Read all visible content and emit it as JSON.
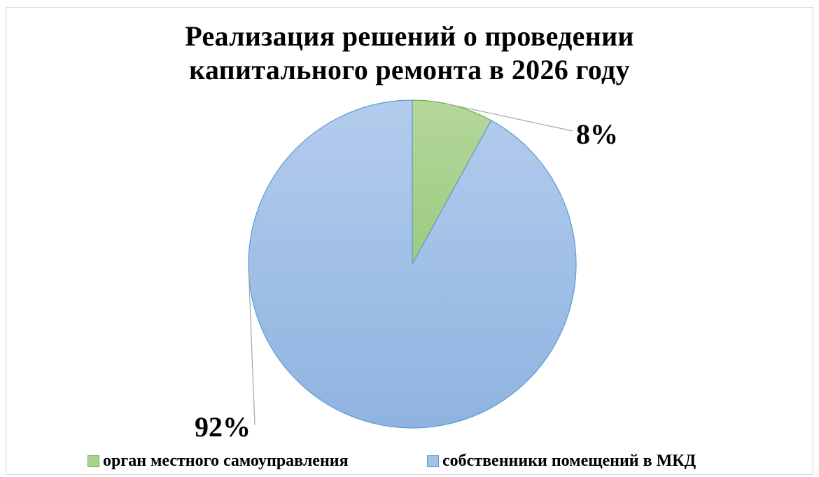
{
  "chart_data": {
    "type": "pie",
    "title": [
      "Реализация решений о проведении",
      "капитального ремонта в 2026 году"
    ],
    "slices": [
      {
        "name": "орган местного самоуправления",
        "value": 8,
        "label": "8%",
        "color": "#a9d18e",
        "border_color": "#70ad47"
      },
      {
        "name": "собственники помещений в МКД",
        "value": 92,
        "label": "92%",
        "color": "#a4c1e6",
        "border_color": "#5b9bd5"
      }
    ],
    "start_angle_deg": 0,
    "direction": "clockwise",
    "legend_position": "bottom",
    "data_labels": "outside-with-leader-lines"
  }
}
